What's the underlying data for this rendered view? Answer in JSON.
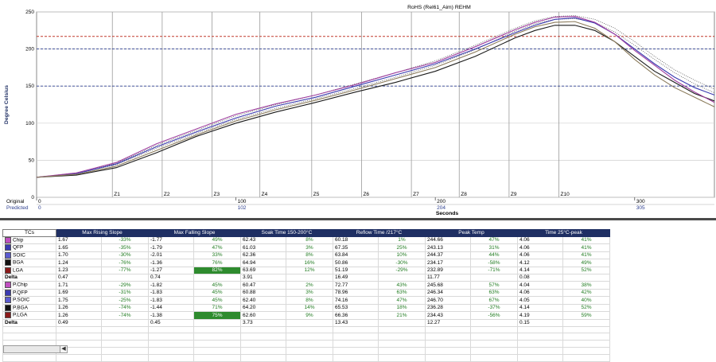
{
  "chart_data": {
    "type": "line",
    "title": "RoHS (Rel61_Aim) REHM",
    "ylabel": "Degree Celsius",
    "xlabel": "Seconds",
    "ylim": [
      0,
      250
    ],
    "xlim": [
      0,
      340
    ],
    "y_ticks": [
      0,
      50,
      100,
      150,
      200,
      250
    ],
    "limit_lines": [
      {
        "value": 217,
        "color": "#c0392b"
      },
      {
        "value": 200,
        "color": "#2c3e8f"
      },
      {
        "value": 150,
        "color": "#2c3e8f"
      }
    ],
    "zones": [
      "Z1",
      "Z2",
      "Z3",
      "Z4",
      "Z5",
      "Z6",
      "Z7",
      "Z8",
      "Z9",
      "Z10"
    ],
    "zone_positions": [
      38,
      63,
      88,
      112,
      138,
      163,
      188,
      212,
      237,
      262
    ],
    "axis_rows": [
      {
        "label": "Original",
        "ticks": [
          {
            "x": 0,
            "text": "0"
          },
          {
            "x": 100,
            "text": "100"
          },
          {
            "x": 200,
            "text": "200"
          },
          {
            "x": 300,
            "text": "300"
          }
        ]
      },
      {
        "label": "Predicted",
        "ticks": [
          {
            "x": 0,
            "text": "0"
          },
          {
            "x": 100,
            "text": "102"
          },
          {
            "x": 200,
            "text": "204"
          },
          {
            "x": 300,
            "text": "305"
          }
        ]
      }
    ],
    "series": [
      {
        "color": "#1a1a1a",
        "points": [
          [
            0,
            27
          ],
          [
            20,
            30
          ],
          [
            40,
            40
          ],
          [
            60,
            60
          ],
          [
            80,
            82
          ],
          [
            100,
            100
          ],
          [
            120,
            115
          ],
          [
            140,
            128
          ],
          [
            160,
            142
          ],
          [
            180,
            155
          ],
          [
            200,
            170
          ],
          [
            220,
            190
          ],
          [
            240,
            215
          ],
          [
            250,
            225
          ],
          [
            260,
            232
          ],
          [
            270,
            232
          ],
          [
            280,
            225
          ],
          [
            290,
            210
          ],
          [
            300,
            190
          ],
          [
            310,
            170
          ],
          [
            320,
            155
          ],
          [
            330,
            140
          ],
          [
            340,
            130
          ]
        ]
      },
      {
        "color": "#3a3ab0",
        "points": [
          [
            0,
            27
          ],
          [
            20,
            32
          ],
          [
            40,
            45
          ],
          [
            60,
            68
          ],
          [
            80,
            88
          ],
          [
            100,
            107
          ],
          [
            120,
            123
          ],
          [
            140,
            135
          ],
          [
            160,
            150
          ],
          [
            180,
            165
          ],
          [
            200,
            180
          ],
          [
            220,
            200
          ],
          [
            240,
            222
          ],
          [
            250,
            232
          ],
          [
            260,
            240
          ],
          [
            270,
            242
          ],
          [
            280,
            235
          ],
          [
            290,
            220
          ],
          [
            300,
            200
          ],
          [
            310,
            180
          ],
          [
            320,
            162
          ],
          [
            330,
            148
          ],
          [
            340,
            138
          ]
        ]
      },
      {
        "color": "#a040a0",
        "points": [
          [
            0,
            27
          ],
          [
            20,
            33
          ],
          [
            40,
            47
          ],
          [
            60,
            72
          ],
          [
            80,
            92
          ],
          [
            100,
            112
          ],
          [
            120,
            126
          ],
          [
            140,
            138
          ],
          [
            160,
            152
          ],
          [
            180,
            168
          ],
          [
            200,
            182
          ],
          [
            220,
            203
          ],
          [
            240,
            226
          ],
          [
            250,
            236
          ],
          [
            260,
            243
          ],
          [
            270,
            244
          ],
          [
            280,
            236
          ],
          [
            290,
            220
          ],
          [
            300,
            198
          ],
          [
            310,
            178
          ],
          [
            320,
            158
          ],
          [
            330,
            142
          ],
          [
            340,
            128
          ]
        ]
      },
      {
        "color": "#8a7a5a",
        "points": [
          [
            0,
            27
          ],
          [
            20,
            31
          ],
          [
            40,
            42
          ],
          [
            60,
            63
          ],
          [
            80,
            84
          ],
          [
            100,
            103
          ],
          [
            120,
            118
          ],
          [
            140,
            131
          ],
          [
            160,
            145
          ],
          [
            180,
            160
          ],
          [
            200,
            175
          ],
          [
            220,
            196
          ],
          [
            240,
            220
          ],
          [
            250,
            230
          ],
          [
            260,
            236
          ],
          [
            270,
            237
          ],
          [
            280,
            228
          ],
          [
            290,
            210
          ],
          [
            300,
            186
          ],
          [
            310,
            165
          ],
          [
            320,
            148
          ],
          [
            330,
            135
          ],
          [
            340,
            122
          ]
        ]
      }
    ],
    "dotted_series": [
      {
        "color": "#555555",
        "points": [
          [
            0,
            27
          ],
          [
            20,
            33
          ],
          [
            40,
            46
          ],
          [
            60,
            70
          ],
          [
            80,
            90
          ],
          [
            100,
            110
          ],
          [
            120,
            125
          ],
          [
            140,
            138
          ],
          [
            160,
            153
          ],
          [
            180,
            168
          ],
          [
            200,
            184
          ],
          [
            220,
            205
          ],
          [
            240,
            228
          ],
          [
            250,
            238
          ],
          [
            260,
            244
          ],
          [
            270,
            245
          ],
          [
            280,
            240
          ],
          [
            290,
            228
          ],
          [
            300,
            210
          ],
          [
            310,
            190
          ],
          [
            320,
            172
          ],
          [
            330,
            158
          ],
          [
            340,
            146
          ]
        ]
      },
      {
        "color": "#555555",
        "points": [
          [
            0,
            27
          ],
          [
            20,
            32
          ],
          [
            40,
            44
          ],
          [
            60,
            66
          ],
          [
            80,
            86
          ],
          [
            100,
            105
          ],
          [
            120,
            120
          ],
          [
            140,
            133
          ],
          [
            160,
            147
          ],
          [
            180,
            162
          ],
          [
            200,
            178
          ],
          [
            220,
            199
          ],
          [
            240,
            224
          ],
          [
            250,
            234
          ],
          [
            260,
            240
          ],
          [
            270,
            241
          ],
          [
            280,
            236
          ],
          [
            290,
            223
          ],
          [
            300,
            205
          ],
          [
            310,
            186
          ],
          [
            320,
            168
          ],
          [
            330,
            153
          ],
          [
            340,
            141
          ]
        ]
      }
    ]
  },
  "table": {
    "headers": [
      "TCs",
      "Max Rising Slope",
      "Max Falling Slope",
      "Soak Time 150-200°C",
      "Reflow Time /217°C",
      "Peak Temp",
      "Time 25°C-peak"
    ],
    "groups": [
      {
        "rows": [
          {
            "name": "Chip",
            "swatch": "#c04fc0",
            "values": [
              [
                "1.67",
                "-33%"
              ],
              [
                "-1.77",
                "49%"
              ],
              [
                "62.43",
                "8%"
              ],
              [
                "60.18",
                "1%"
              ],
              [
                "244.66",
                "47%"
              ],
              [
                "4.06",
                "41%"
              ]
            ]
          },
          {
            "name": "QFP",
            "swatch": "#3a3ab0",
            "values": [
              [
                "1.65",
                "-35%"
              ],
              [
                "-1.79",
                "47%"
              ],
              [
                "61.03",
                "3%"
              ],
              [
                "67.35",
                "25%"
              ],
              [
                "243.13",
                "31%"
              ],
              [
                "4.06",
                "41%"
              ]
            ]
          },
          {
            "name": "SOIC",
            "swatch": "#5a5ad0",
            "values": [
              [
                "1.70",
                "-30%"
              ],
              [
                "-2.01",
                "33%"
              ],
              [
                "62.36",
                "8%"
              ],
              [
                "63.84",
                "10%"
              ],
              [
                "244.37",
                "44%"
              ],
              [
                "4.06",
                "41%"
              ]
            ]
          },
          {
            "name": "BGA",
            "swatch": "#111111",
            "values": [
              [
                "1.24",
                "-76%"
              ],
              [
                "-1.36",
                "76%"
              ],
              [
                "64.94",
                "16%"
              ],
              [
                "50.86",
                "-30%"
              ],
              [
                "234.17",
                "-58%"
              ],
              [
                "4.12",
                "49%"
              ]
            ]
          },
          {
            "name": "LGA",
            "swatch": "#8b1a1a",
            "values": [
              [
                "1.23",
                "-77%"
              ],
              [
                "-1.27",
                "82%"
              ],
              [
                "63.69",
                "12%"
              ],
              [
                "51.19",
                "-29%"
              ],
              [
                "232.89",
                "-71%"
              ],
              [
                "4.14",
                "52%"
              ]
            ],
            "highlight": [
              1
            ]
          }
        ],
        "delta": [
          "0.47",
          "0.74",
          "3.91",
          "16.49",
          "11.77",
          "0.08"
        ]
      },
      {
        "rows": [
          {
            "name": "P.Chip",
            "swatch": "#c04fc0",
            "values": [
              [
                "1.71",
                "-29%"
              ],
              [
                "-1.82",
                "45%"
              ],
              [
                "60.47",
                "2%"
              ],
              [
                "72.77",
                "43%"
              ],
              [
                "245.68",
                "57%"
              ],
              [
                "4.04",
                "38%"
              ]
            ]
          },
          {
            "name": "P.QFP",
            "swatch": "#3a3ab0",
            "values": [
              [
                "1.69",
                "-31%"
              ],
              [
                "-1.83",
                "45%"
              ],
              [
                "60.88",
                "3%"
              ],
              [
                "78.96",
                "63%"
              ],
              [
                "246.34",
                "63%"
              ],
              [
                "4.06",
                "42%"
              ]
            ]
          },
          {
            "name": "P.SOIC",
            "swatch": "#5a5ad0",
            "values": [
              [
                "1.75",
                "-25%"
              ],
              [
                "-1.83",
                "45%"
              ],
              [
                "62.40",
                "8%"
              ],
              [
                "74.16",
                "47%"
              ],
              [
                "246.70",
                "67%"
              ],
              [
                "4.05",
                "40%"
              ]
            ]
          },
          {
            "name": "P.BGA",
            "swatch": "#111111",
            "values": [
              [
                "1.26",
                "-74%"
              ],
              [
                "-1.44",
                "71%"
              ],
              [
                "64.20",
                "14%"
              ],
              [
                "65.53",
                "18%"
              ],
              [
                "236.28",
                "-37%"
              ],
              [
                "4.14",
                "52%"
              ]
            ]
          },
          {
            "name": "P.LGA",
            "swatch": "#8b1a1a",
            "values": [
              [
                "1.26",
                "-74%"
              ],
              [
                "-1.38",
                "75%"
              ],
              [
                "62.60",
                "9%"
              ],
              [
                "66.36",
                "21%"
              ],
              [
                "234.43",
                "-56%"
              ],
              [
                "4.19",
                "59%"
              ]
            ],
            "highlight": [
              1
            ]
          }
        ],
        "delta": [
          "0.49",
          "0.45",
          "3.73",
          "13.43",
          "12.27",
          "0.15"
        ]
      }
    ],
    "delta_label": "Delta",
    "blank_rows": 5
  },
  "colors": {
    "header_bg": "#1f2f63",
    "highlight": "#2e8b2e",
    "grid": "#c8c8c8"
  }
}
